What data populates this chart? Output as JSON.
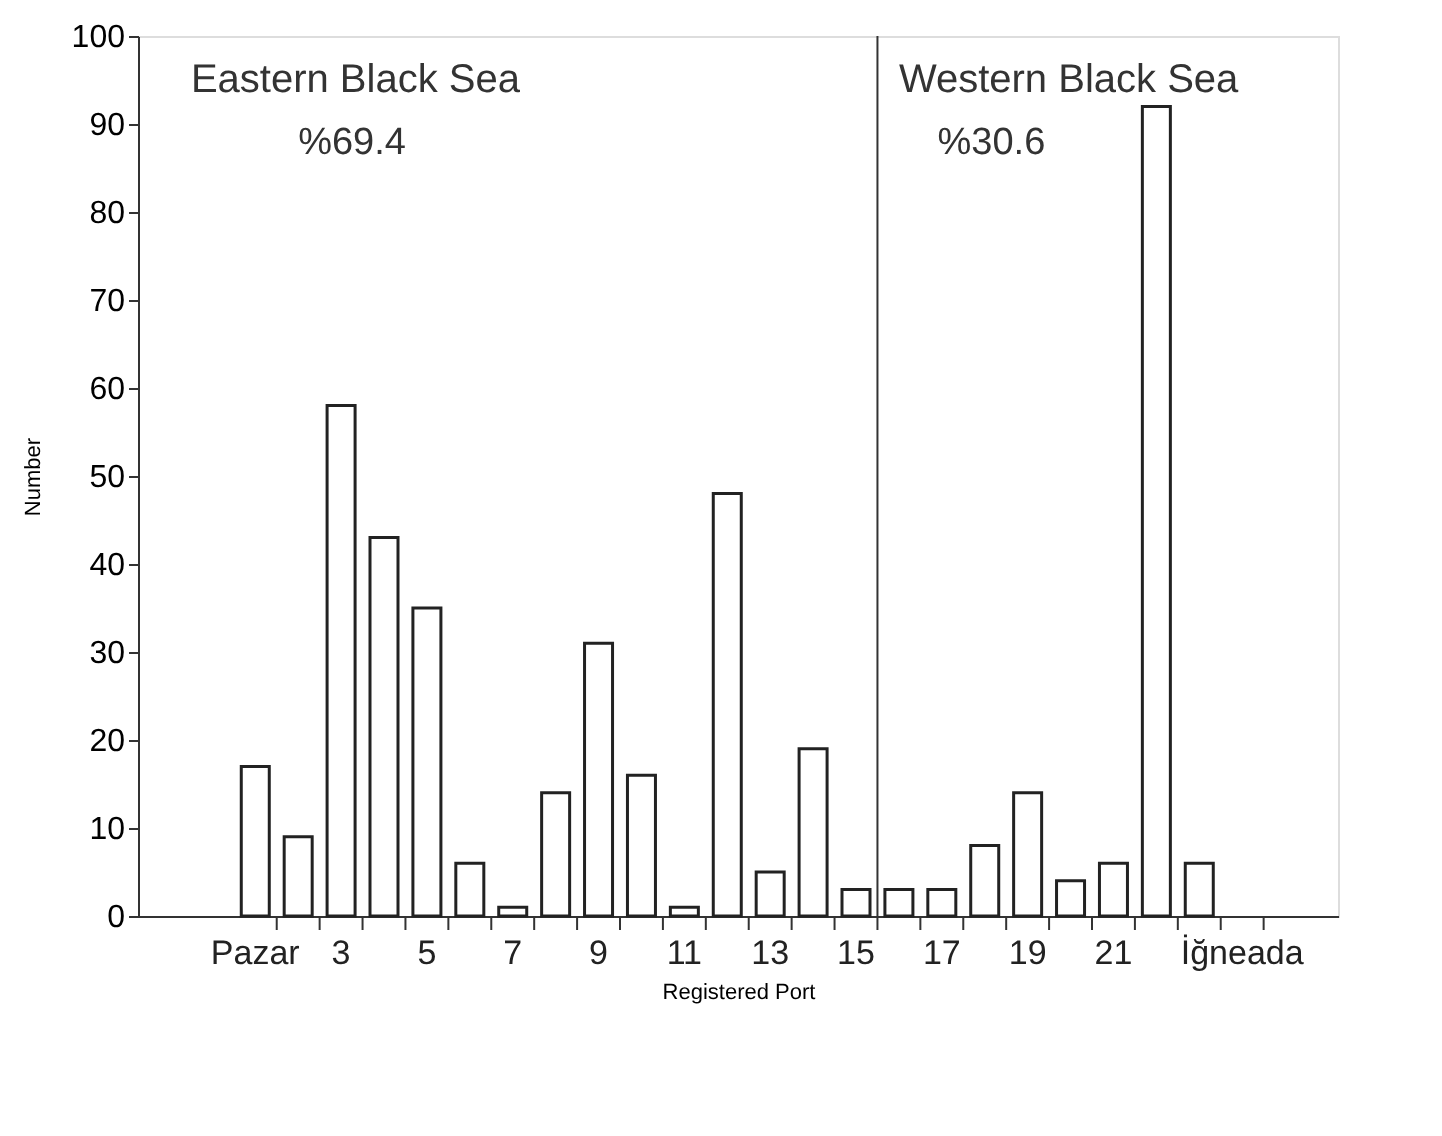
{
  "chart_data": {
    "type": "bar",
    "xlabel": "Registered Port",
    "ylabel": "Number",
    "categories": [
      "Pazar",
      null,
      "3",
      null,
      "5",
      null,
      "7",
      null,
      "9",
      null,
      "11",
      null,
      "13",
      null,
      "15",
      null,
      "17",
      null,
      "19",
      null,
      "21",
      null,
      null,
      "İğneada"
    ],
    "values": [
      17,
      9,
      58,
      43,
      35,
      6,
      1,
      14,
      31,
      16,
      1,
      48,
      5,
      19,
      3,
      3,
      3,
      8,
      14,
      4,
      6,
      92,
      6,
      0
    ],
    "color": "#ffffff",
    "ylim": [
      0,
      100
    ],
    "yticks": [
      0,
      10,
      20,
      30,
      40,
      50,
      60,
      70,
      80,
      90,
      100
    ],
    "grid": false,
    "annotations": [
      "Eastern Black Sea",
      "%69.4",
      "Western Black Sea",
      "%30.6"
    ]
  }
}
